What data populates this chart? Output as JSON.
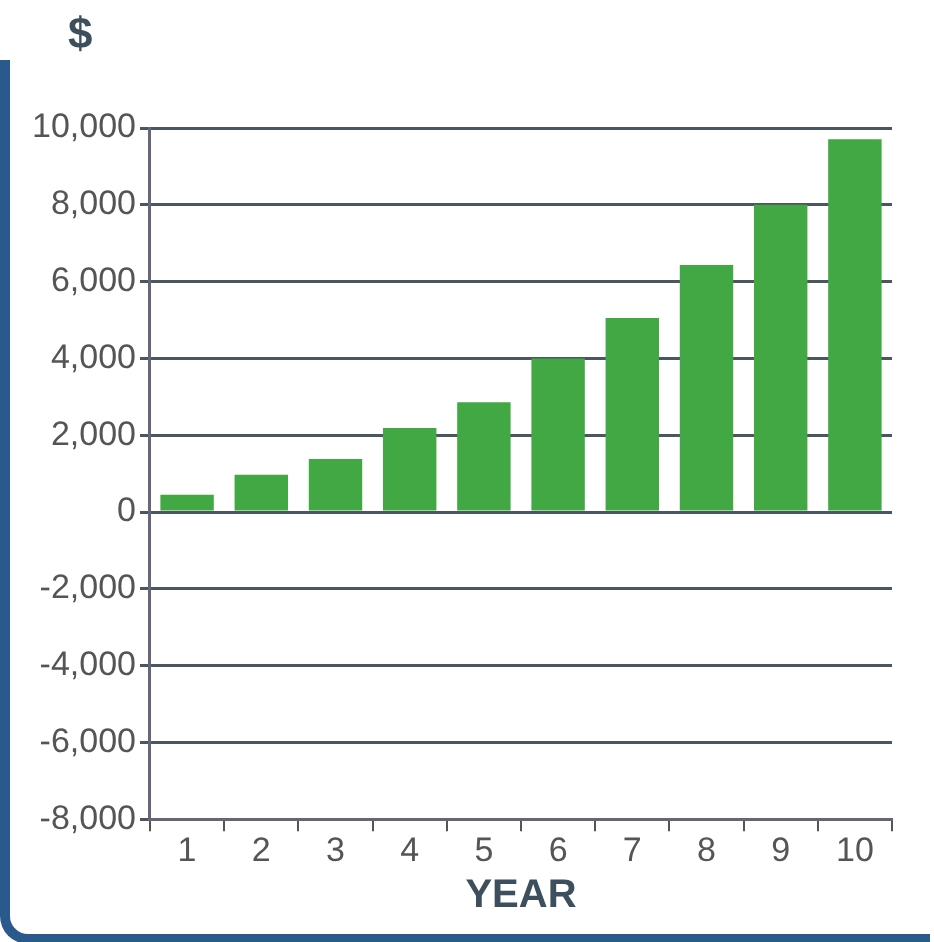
{
  "chart_data": {
    "type": "bar",
    "ylabel": "$",
    "xlabel": "YEAR",
    "categories": [
      "1",
      "2",
      "3",
      "4",
      "5",
      "6",
      "7",
      "8",
      "9",
      "10"
    ],
    "values": [
      450,
      970,
      1380,
      2190,
      2860,
      4000,
      5050,
      6430,
      8000,
      9710
    ],
    "color": "#42a843",
    "ylim": [
      -8000,
      10000
    ],
    "yticks": [
      {
        "value": -8000,
        "label": "-8,000"
      },
      {
        "value": -6000,
        "label": "-6,000"
      },
      {
        "value": -4000,
        "label": "-4,000"
      },
      {
        "value": -2000,
        "label": "-2,000"
      },
      0,
      {
        "value": 2000,
        "label": "2,000"
      },
      {
        "value": 4000,
        "label": "4,000"
      },
      {
        "value": 6000,
        "label": "6,000"
      },
      {
        "value": 8000,
        "label": "8,000"
      },
      {
        "value": 10000,
        "label": "10,000"
      }
    ],
    "grid": "y"
  }
}
